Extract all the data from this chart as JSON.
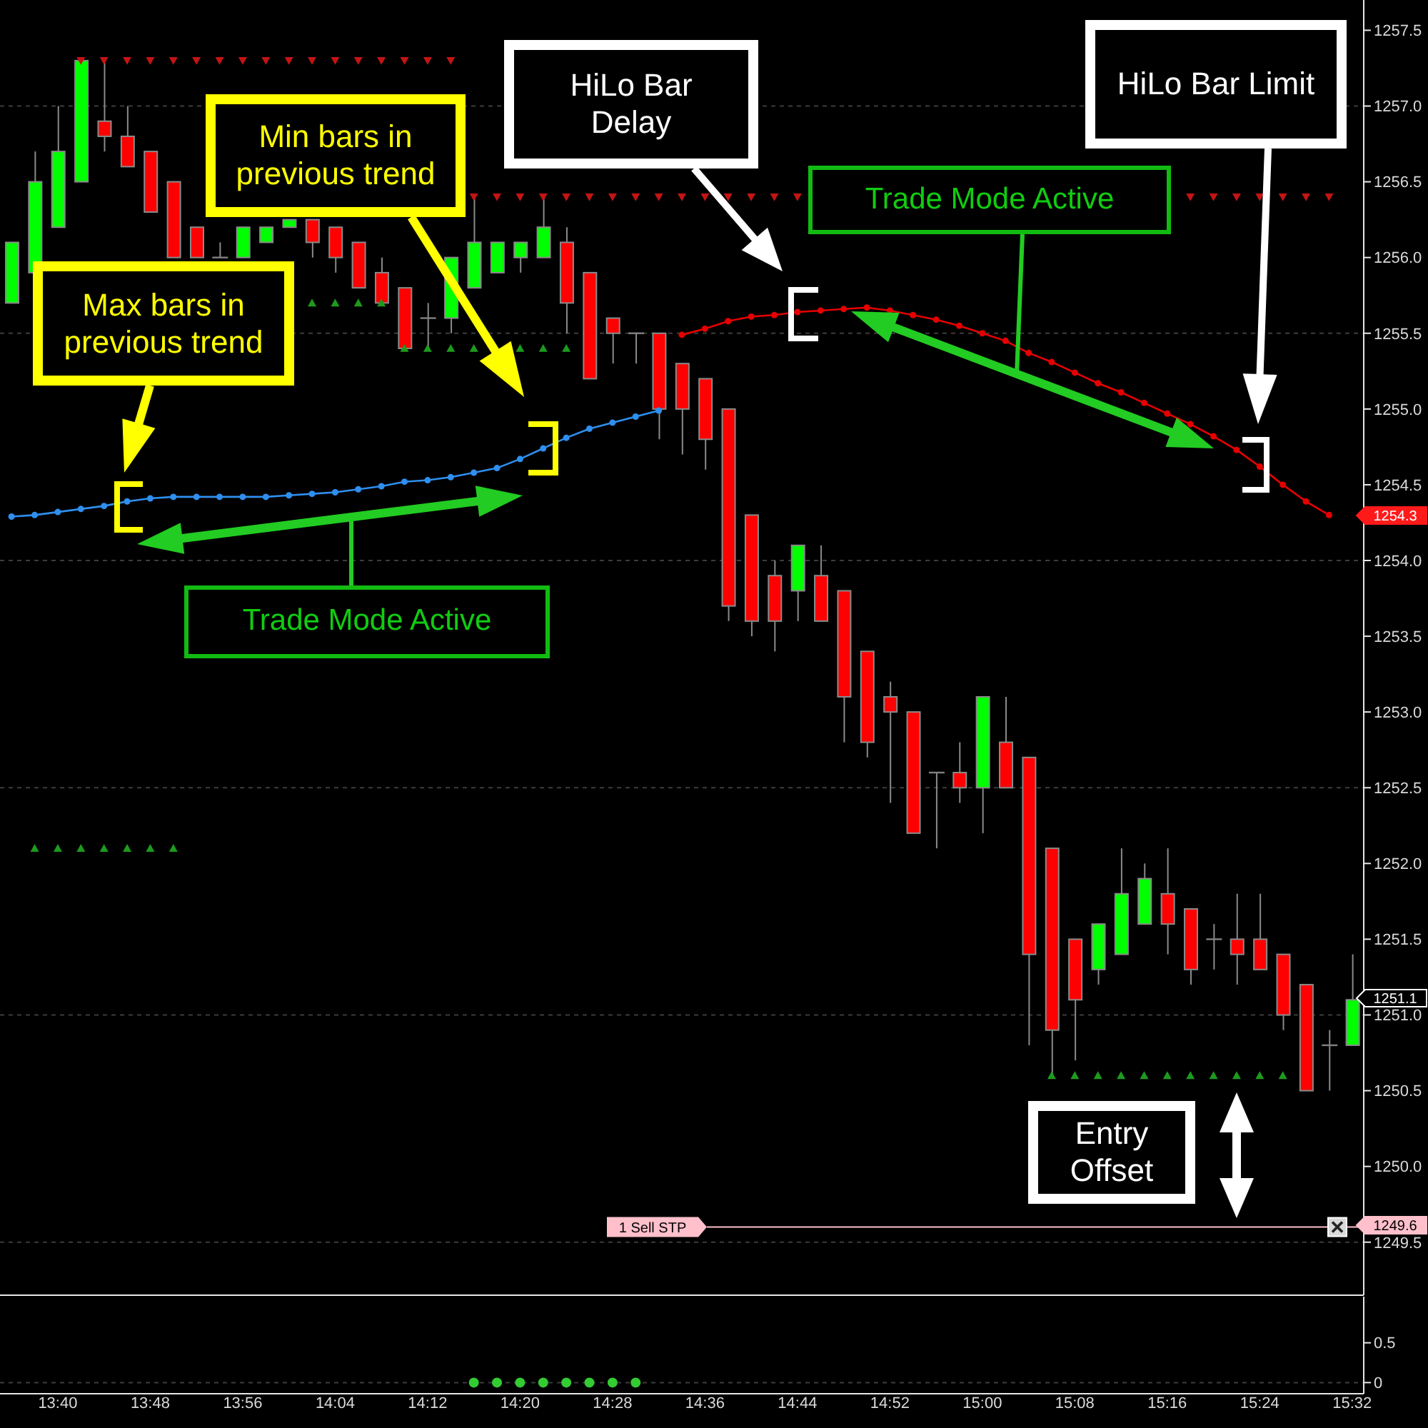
{
  "chart_data": [
    {
      "type": "candlestick",
      "categories": [
        null,
        null,
        null,
        null,
        null,
        null,
        null,
        null,
        null,
        null,
        null,
        null,
        null,
        null,
        null,
        null,
        null,
        null,
        null,
        null,
        null,
        null,
        null,
        null,
        null,
        null,
        null,
        null,
        null,
        null,
        null,
        null,
        null,
        null,
        null,
        null,
        null,
        null,
        null,
        null,
        null,
        null,
        null,
        null,
        null,
        null,
        null,
        null,
        null,
        null,
        null,
        null,
        null,
        null,
        null,
        null,
        null,
        null,
        null
      ],
      "ohlc": [
        [
          1255.7,
          1256.1,
          1255.7,
          1256.1
        ],
        [
          1255.9,
          1256.7,
          1255.9,
          1256.5
        ],
        [
          1256.2,
          1257.0,
          1256.2,
          1256.7
        ],
        [
          1256.5,
          1257.3,
          1256.5,
          1257.3
        ],
        [
          1256.9,
          1257.3,
          1256.7,
          1256.8
        ],
        [
          1256.8,
          1257.0,
          1256.6,
          1256.6
        ],
        [
          1256.7,
          1256.7,
          1256.3,
          1256.3
        ],
        [
          1256.5,
          1256.5,
          1256.0,
          1256.0
        ],
        [
          1256.2,
          1256.2,
          1256.0,
          1256.0
        ],
        [
          1256.0,
          1256.1,
          1256.0,
          1256.0
        ],
        [
          1256.0,
          1256.2,
          1256.0,
          1256.2
        ],
        [
          1256.1,
          1256.2,
          1256.1,
          1256.2
        ],
        [
          1256.2,
          1256.25,
          1256.2,
          1256.25
        ],
        [
          1256.25,
          1256.25,
          1256.0,
          1256.1
        ],
        [
          1256.2,
          1256.2,
          1255.9,
          1256.0
        ],
        [
          1256.1,
          1256.1,
          1255.8,
          1255.8
        ],
        [
          1255.9,
          1256.0,
          1255.7,
          1255.7
        ],
        [
          1255.8,
          1255.8,
          1255.4,
          1255.4
        ],
        [
          1255.6,
          1255.7,
          1255.4,
          1255.6
        ],
        [
          1255.6,
          1256.0,
          1255.5,
          1256.0
        ],
        [
          1255.8,
          1256.4,
          1255.8,
          1256.1
        ],
        [
          1255.9,
          1256.1,
          1255.9,
          1256.1
        ],
        [
          1256.0,
          1256.1,
          1255.9,
          1256.1
        ],
        [
          1256.0,
          1256.4,
          1256.0,
          1256.2
        ],
        [
          1256.1,
          1256.2,
          1255.5,
          1255.7
        ],
        [
          1255.9,
          1255.9,
          1255.2,
          1255.2
        ],
        [
          1255.6,
          1255.6,
          1255.3,
          1255.5
        ],
        [
          1255.5,
          1255.5,
          1255.3,
          1255.5
        ],
        [
          1255.5,
          1255.5,
          1254.8,
          1255.0
        ],
        [
          1255.3,
          1255.3,
          1254.7,
          1255.0
        ],
        [
          1255.2,
          1255.2,
          1254.6,
          1254.8
        ],
        [
          1255.0,
          1255.0,
          1253.6,
          1253.7
        ],
        [
          1254.3,
          1254.3,
          1253.5,
          1253.6
        ],
        [
          1253.9,
          1254.0,
          1253.4,
          1253.6
        ],
        [
          1253.8,
          1254.1,
          1253.6,
          1254.1
        ],
        [
          1253.9,
          1254.1,
          1253.6,
          1253.6
        ],
        [
          1253.8,
          1253.8,
          1252.8,
          1253.1
        ],
        [
          1253.4,
          1253.4,
          1252.7,
          1252.8
        ],
        [
          1253.1,
          1253.2,
          1252.4,
          1253.0
        ],
        [
          1253.0,
          1253.0,
          1252.2,
          1252.2
        ],
        [
          1252.6,
          1252.6,
          1252.1,
          1252.6
        ],
        [
          1252.6,
          1252.8,
          1252.4,
          1252.5
        ],
        [
          1252.5,
          1253.1,
          1252.2,
          1253.1
        ],
        [
          1252.8,
          1253.1,
          1252.5,
          1252.5
        ],
        [
          1252.7,
          1252.7,
          1250.8,
          1251.4
        ],
        [
          1252.1,
          1252.1,
          1250.6,
          1250.9
        ],
        [
          1251.5,
          1251.5,
          1250.7,
          1251.1
        ],
        [
          1251.3,
          1251.6,
          1251.2,
          1251.6
        ],
        [
          1251.4,
          1252.1,
          1251.4,
          1251.8
        ],
        [
          1251.6,
          1252.0,
          1251.6,
          1251.9
        ],
        [
          1251.8,
          1252.1,
          1251.4,
          1251.6
        ],
        [
          1251.7,
          1251.7,
          1251.2,
          1251.3
        ],
        [
          1251.5,
          1251.6,
          1251.3,
          1251.5
        ],
        [
          1251.5,
          1251.8,
          1251.2,
          1251.4
        ],
        [
          1251.5,
          1251.8,
          1251.3,
          1251.3
        ],
        [
          1251.4,
          1251.4,
          1250.9,
          1251.0
        ],
        [
          1251.2,
          1251.2,
          1250.5,
          1250.5
        ],
        [
          1250.8,
          1250.9,
          1250.5,
          1250.8
        ],
        [
          1250.8,
          1251.4,
          1250.8,
          1251.1
        ]
      ],
      "colors": [
        "#00ff00",
        "#00ff00",
        "#00ff00",
        "#00ff00",
        "#ff0000",
        "#ff0000",
        "#ff0000",
        "#ff0000",
        "#ff0000",
        "#808080",
        "#00ff00",
        "#00ff00",
        "#00ff00",
        "#ff0000",
        "#ff0000",
        "#ff0000",
        "#ff0000",
        "#ff0000",
        "#808080",
        "#00ff00",
        "#00ff00",
        "#00ff00",
        "#00ff00",
        "#00ff00",
        "#ff0000",
        "#ff0000",
        "#ff0000",
        "#808080",
        "#ff0000",
        "#ff0000",
        "#ff0000",
        "#ff0000",
        "#ff0000",
        "#ff0000",
        "#00ff00",
        "#ff0000",
        "#ff0000",
        "#ff0000",
        "#ff0000",
        "#ff0000",
        "#808080",
        "#ff0000",
        "#00ff00",
        "#ff0000",
        "#ff0000",
        "#ff0000",
        "#ff0000",
        "#00ff00",
        "#00ff00",
        "#00ff00",
        "#ff0000",
        "#ff0000",
        "#808080",
        "#ff0000",
        "#ff0000",
        "#ff0000",
        "#ff0000",
        "#808080",
        "#00ff00"
      ],
      "series": [
        {
          "type": "line",
          "color": "#2f8fef",
          "marker": "circle",
          "values": [
            1254.29,
            1254.3,
            1254.32,
            1254.34,
            1254.36,
            1254.39,
            1254.41,
            1254.42,
            1254.42,
            1254.42,
            1254.42,
            1254.42,
            1254.43,
            1254.44,
            1254.45,
            1254.47,
            1254.49,
            1254.52,
            1254.53,
            1254.55,
            1254.58,
            1254.61,
            1254.67,
            1254.74,
            1254.81,
            1254.87,
            1254.91,
            1254.95,
            1254.99,
            null,
            null,
            null,
            null,
            null,
            null,
            null,
            null,
            null,
            null,
            null,
            null,
            null,
            null,
            null,
            null,
            null,
            null,
            null,
            null,
            null,
            null,
            null,
            null,
            null,
            null,
            null,
            null,
            null,
            null
          ]
        },
        {
          "type": "line",
          "color": "#e60000",
          "marker": "circle",
          "values": [
            null,
            null,
            null,
            null,
            null,
            null,
            null,
            null,
            null,
            null,
            null,
            null,
            null,
            null,
            null,
            null,
            null,
            null,
            null,
            null,
            null,
            null,
            null,
            null,
            null,
            null,
            null,
            null,
            null,
            1255.49,
            1255.53,
            1255.58,
            1255.61,
            1255.62,
            1255.64,
            1255.65,
            1255.66,
            1255.67,
            1255.65,
            1255.62,
            1255.59,
            1255.55,
            1255.5,
            1255.45,
            1255.37,
            1255.31,
            1255.24,
            1255.17,
            1255.11,
            1255.04,
            1254.97,
            1254.9,
            1254.82,
            1254.73,
            1254.62,
            1254.5,
            1254.39,
            1254.3,
            null
          ]
        },
        {
          "type": "scatter",
          "color": "#c41414",
          "marker": "triangle-down",
          "values": [
            null,
            null,
            null,
            1257.3,
            1257.3,
            1257.3,
            1257.3,
            1257.3,
            1257.3,
            1257.3,
            1257.3,
            1257.3,
            1257.3,
            1257.3,
            1257.3,
            1257.3,
            1257.3,
            1257.3,
            1257.3,
            1257.3,
            1256.4,
            1256.4,
            1256.4,
            1256.4,
            1256.4,
            1256.4,
            1256.4,
            1256.4,
            1256.4,
            1256.4,
            1256.4,
            1256.4,
            1256.4,
            1256.4,
            1256.4,
            null,
            null,
            null,
            null,
            null,
            null,
            null,
            null,
            null,
            null,
            null,
            null,
            null,
            null,
            null,
            null,
            1256.4,
            1256.4,
            1256.4,
            1256.4,
            1256.4,
            1256.4,
            1256.4,
            null
          ]
        },
        {
          "type": "scatter",
          "color": "#1e9a1e",
          "marker": "triangle",
          "values": [
            null,
            1252.1,
            1252.1,
            1252.1,
            1252.1,
            1252.1,
            1252.1,
            1252.1,
            null,
            null,
            null,
            null,
            null,
            1255.7,
            1255.7,
            1255.7,
            1255.7,
            1255.4,
            1255.4,
            1255.4,
            1255.4,
            null,
            1255.4,
            1255.4,
            1255.4,
            null,
            null,
            null,
            null,
            null,
            null,
            null,
            null,
            null,
            null,
            null,
            null,
            null,
            null,
            null,
            null,
            null,
            null,
            null,
            null,
            1250.6,
            1250.6,
            1250.6,
            1250.6,
            1250.6,
            1250.6,
            1250.6,
            1250.6,
            1250.6,
            1250.6,
            1250.6,
            null,
            null,
            null
          ]
        }
      ],
      "ylim": [
        1249.15,
        1257.7
      ],
      "yticks": [
        1249.5,
        {
          "value": 1250,
          "label": "1250.0"
        },
        1250.5,
        {
          "value": 1251,
          "label": "1251.0"
        },
        1251.5,
        {
          "value": 1252,
          "label": "1252.0"
        },
        1252.5,
        {
          "value": 1253,
          "label": "1253.0"
        },
        1253.5,
        {
          "value": 1254,
          "label": "1254.0"
        },
        1254.5,
        {
          "value": 1255,
          "label": "1255.0"
        },
        1255.5,
        {
          "value": 1256,
          "label": "1256.0"
        },
        1256.5,
        {
          "value": 1257,
          "label": "1257.0"
        },
        1257.5
      ],
      "tick_labels": "y",
      "ref_lines": [
        {
          "axis": "y",
          "value": 1257,
          "line_style": "dashed",
          "color": "#3c3c3c"
        },
        {
          "axis": "y",
          "value": 1255.5,
          "line_style": "dashed",
          "color": "#3c3c3c"
        },
        {
          "axis": "y",
          "value": 1254,
          "line_style": "dashed",
          "color": "#3c3c3c"
        },
        {
          "axis": "y",
          "value": 1252.5,
          "line_style": "dashed",
          "color": "#3c3c3c"
        },
        {
          "axis": "y",
          "value": 1251,
          "line_style": "dashed",
          "color": "#3c3c3c"
        },
        {
          "axis": "y",
          "value": 1249.5,
          "line_style": "dashed",
          "color": "#3c3c3c"
        },
        {
          "axis": "y",
          "value": 1249.6,
          "label": "1 Sell STP",
          "color": "#ffc0cb"
        }
      ],
      "annotations": [
        "Min bars in previous trend",
        "Max bars in previous trend",
        "HiLo Bar Delay",
        "HiLo Bar Limit",
        "Trade Mode Active",
        "Trade Mode Active",
        "Entry Offset",
        "1254.3",
        "1251.1",
        "1249.6"
      ]
    },
    {
      "type": "scatter",
      "categories": [
        null,
        null,
        "13:40",
        null,
        null,
        null,
        "13:48",
        null,
        null,
        null,
        "13:56",
        null,
        null,
        null,
        "14:04",
        null,
        null,
        null,
        "14:12",
        null,
        null,
        null,
        "14:20",
        null,
        null,
        null,
        "14:28",
        null,
        null,
        null,
        "14:36",
        null,
        null,
        null,
        "14:44",
        null,
        null,
        null,
        "14:52",
        null,
        null,
        null,
        "15:00",
        null,
        null,
        null,
        "15:08",
        null,
        null,
        null,
        "15:16",
        null,
        null,
        null,
        "15:24",
        null,
        null,
        null,
        "15:32"
      ],
      "values": [
        null,
        null,
        null,
        null,
        null,
        null,
        null,
        null,
        null,
        null,
        null,
        null,
        null,
        null,
        null,
        null,
        null,
        null,
        null,
        null,
        0,
        0,
        0,
        0,
        0,
        0,
        0,
        0,
        null,
        null,
        null,
        null,
        null,
        null,
        null,
        null,
        null,
        null,
        null,
        null,
        null,
        null,
        null,
        null,
        null,
        null,
        null,
        null,
        null,
        null,
        null,
        null,
        null,
        null,
        null,
        null,
        null,
        null,
        null
      ],
      "color": "#33cc33",
      "marker": "circle",
      "ylim": [
        -0.14,
        1.08
      ],
      "yticks": [
        0,
        0.5
      ],
      "ref_lines": [
        {
          "axis": "y",
          "value": 0,
          "line_style": "dashed",
          "color": "#3c3c3c"
        }
      ]
    }
  ]
}
